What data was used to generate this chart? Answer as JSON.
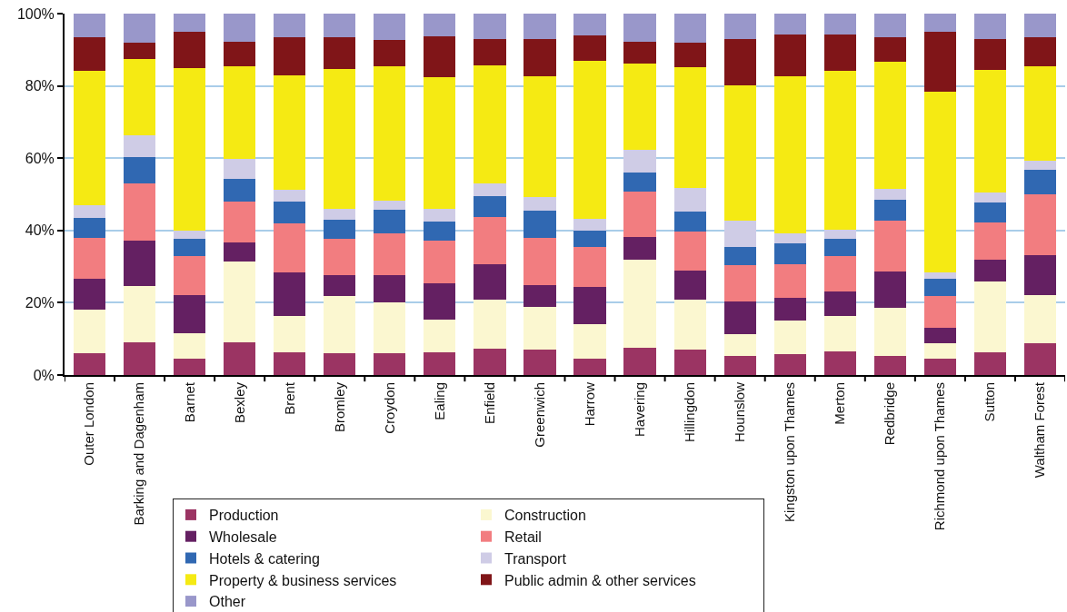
{
  "chart_data": {
    "type": "bar",
    "stacked": true,
    "categories": [
      "Outer London",
      "Barking and Dagenham",
      "Barnet",
      "Bexley",
      "Brent",
      "Bromley",
      "Croydon",
      "Ealing",
      "Enfield",
      "Greenwich",
      "Harrow",
      "Havering",
      "Hillingdon",
      "Hounslow",
      "Kingston upon Thames",
      "Merton",
      "Redbridge",
      "Richmond upon Thames",
      "Sutton",
      "Waltham Forest"
    ],
    "series": [
      {
        "name": "Production",
        "color": "#9b3463",
        "values": [
          6.1,
          9.1,
          4.4,
          9.1,
          6.4,
          6.0,
          6.1,
          6.4,
          7.4,
          7.1,
          4.4,
          7.6,
          7.1,
          5.4,
          5.9,
          6.6,
          5.4,
          4.6,
          6.4,
          8.9
        ]
      },
      {
        "name": "Construction",
        "color": "#fbf7d0",
        "values": [
          12.1,
          15.6,
          7.2,
          22.4,
          10.0,
          15.9,
          14.1,
          9.0,
          13.5,
          11.8,
          9.7,
          24.4,
          13.8,
          6.0,
          9.2,
          9.8,
          13.3,
          4.3,
          19.5,
          13.3
        ]
      },
      {
        "name": "Wholesale",
        "color": "#642062",
        "values": [
          8.5,
          12.5,
          10.6,
          5.2,
          12.1,
          5.8,
          7.5,
          10.0,
          9.8,
          6.0,
          10.3,
          6.2,
          8.1,
          9.0,
          6.3,
          6.8,
          10.0,
          4.2,
          6.1,
          11.0
        ]
      },
      {
        "name": "Retail",
        "color": "#f27d80",
        "values": [
          11.3,
          15.9,
          10.8,
          11.3,
          13.5,
          10.0,
          11.5,
          11.8,
          13.1,
          13.1,
          11.1,
          12.6,
          10.7,
          10.1,
          9.3,
          9.8,
          14.1,
          8.8,
          10.3,
          16.8
        ]
      },
      {
        "name": "Hotels & catering",
        "color": "#3068b2",
        "values": [
          5.5,
          7.2,
          4.7,
          6.3,
          6.0,
          5.3,
          6.6,
          5.3,
          5.7,
          7.5,
          4.5,
          5.3,
          5.6,
          5.0,
          5.8,
          4.7,
          5.7,
          4.8,
          5.5,
          6.8
        ]
      },
      {
        "name": "Transport",
        "color": "#cfcce6",
        "values": [
          3.6,
          6.1,
          2.3,
          5.5,
          3.3,
          3.1,
          2.5,
          3.6,
          3.6,
          3.8,
          3.3,
          6.2,
          6.5,
          7.3,
          2.6,
          2.6,
          3.1,
          1.8,
          2.8,
          2.5
        ]
      },
      {
        "name": "Property & business services",
        "color": "#f5ea13",
        "values": [
          37.1,
          21.0,
          44.9,
          25.6,
          31.6,
          38.6,
          37.1,
          36.3,
          32.6,
          33.4,
          43.6,
          23.9,
          33.4,
          37.4,
          43.6,
          43.9,
          35.1,
          49.9,
          33.8,
          26.1
        ]
      },
      {
        "name": "Public admin & other services",
        "color": "#801518",
        "values": [
          9.3,
          4.6,
          10.1,
          6.8,
          10.6,
          8.8,
          7.3,
          11.3,
          7.3,
          10.3,
          7.1,
          6.0,
          6.8,
          12.8,
          11.5,
          10.0,
          6.8,
          16.6,
          8.6,
          8.1
        ]
      },
      {
        "name": "Other",
        "color": "#9997ca",
        "values": [
          6.5,
          8.0,
          5.0,
          7.8,
          6.5,
          6.5,
          7.3,
          6.3,
          7.0,
          7.0,
          6.0,
          7.8,
          8.0,
          7.0,
          5.8,
          5.8,
          6.5,
          5.0,
          7.0,
          6.5
        ]
      }
    ],
    "ylim": [
      0,
      100
    ],
    "yticks": [
      {
        "value": 0,
        "label": "0%"
      },
      {
        "value": 20,
        "label": "20%"
      },
      {
        "value": 40,
        "label": "40%"
      },
      {
        "value": 60,
        "label": "60%"
      },
      {
        "value": 80,
        "label": "80%"
      },
      {
        "value": 100,
        "label": "100%"
      }
    ],
    "grid": "y",
    "legend": "bottom"
  }
}
